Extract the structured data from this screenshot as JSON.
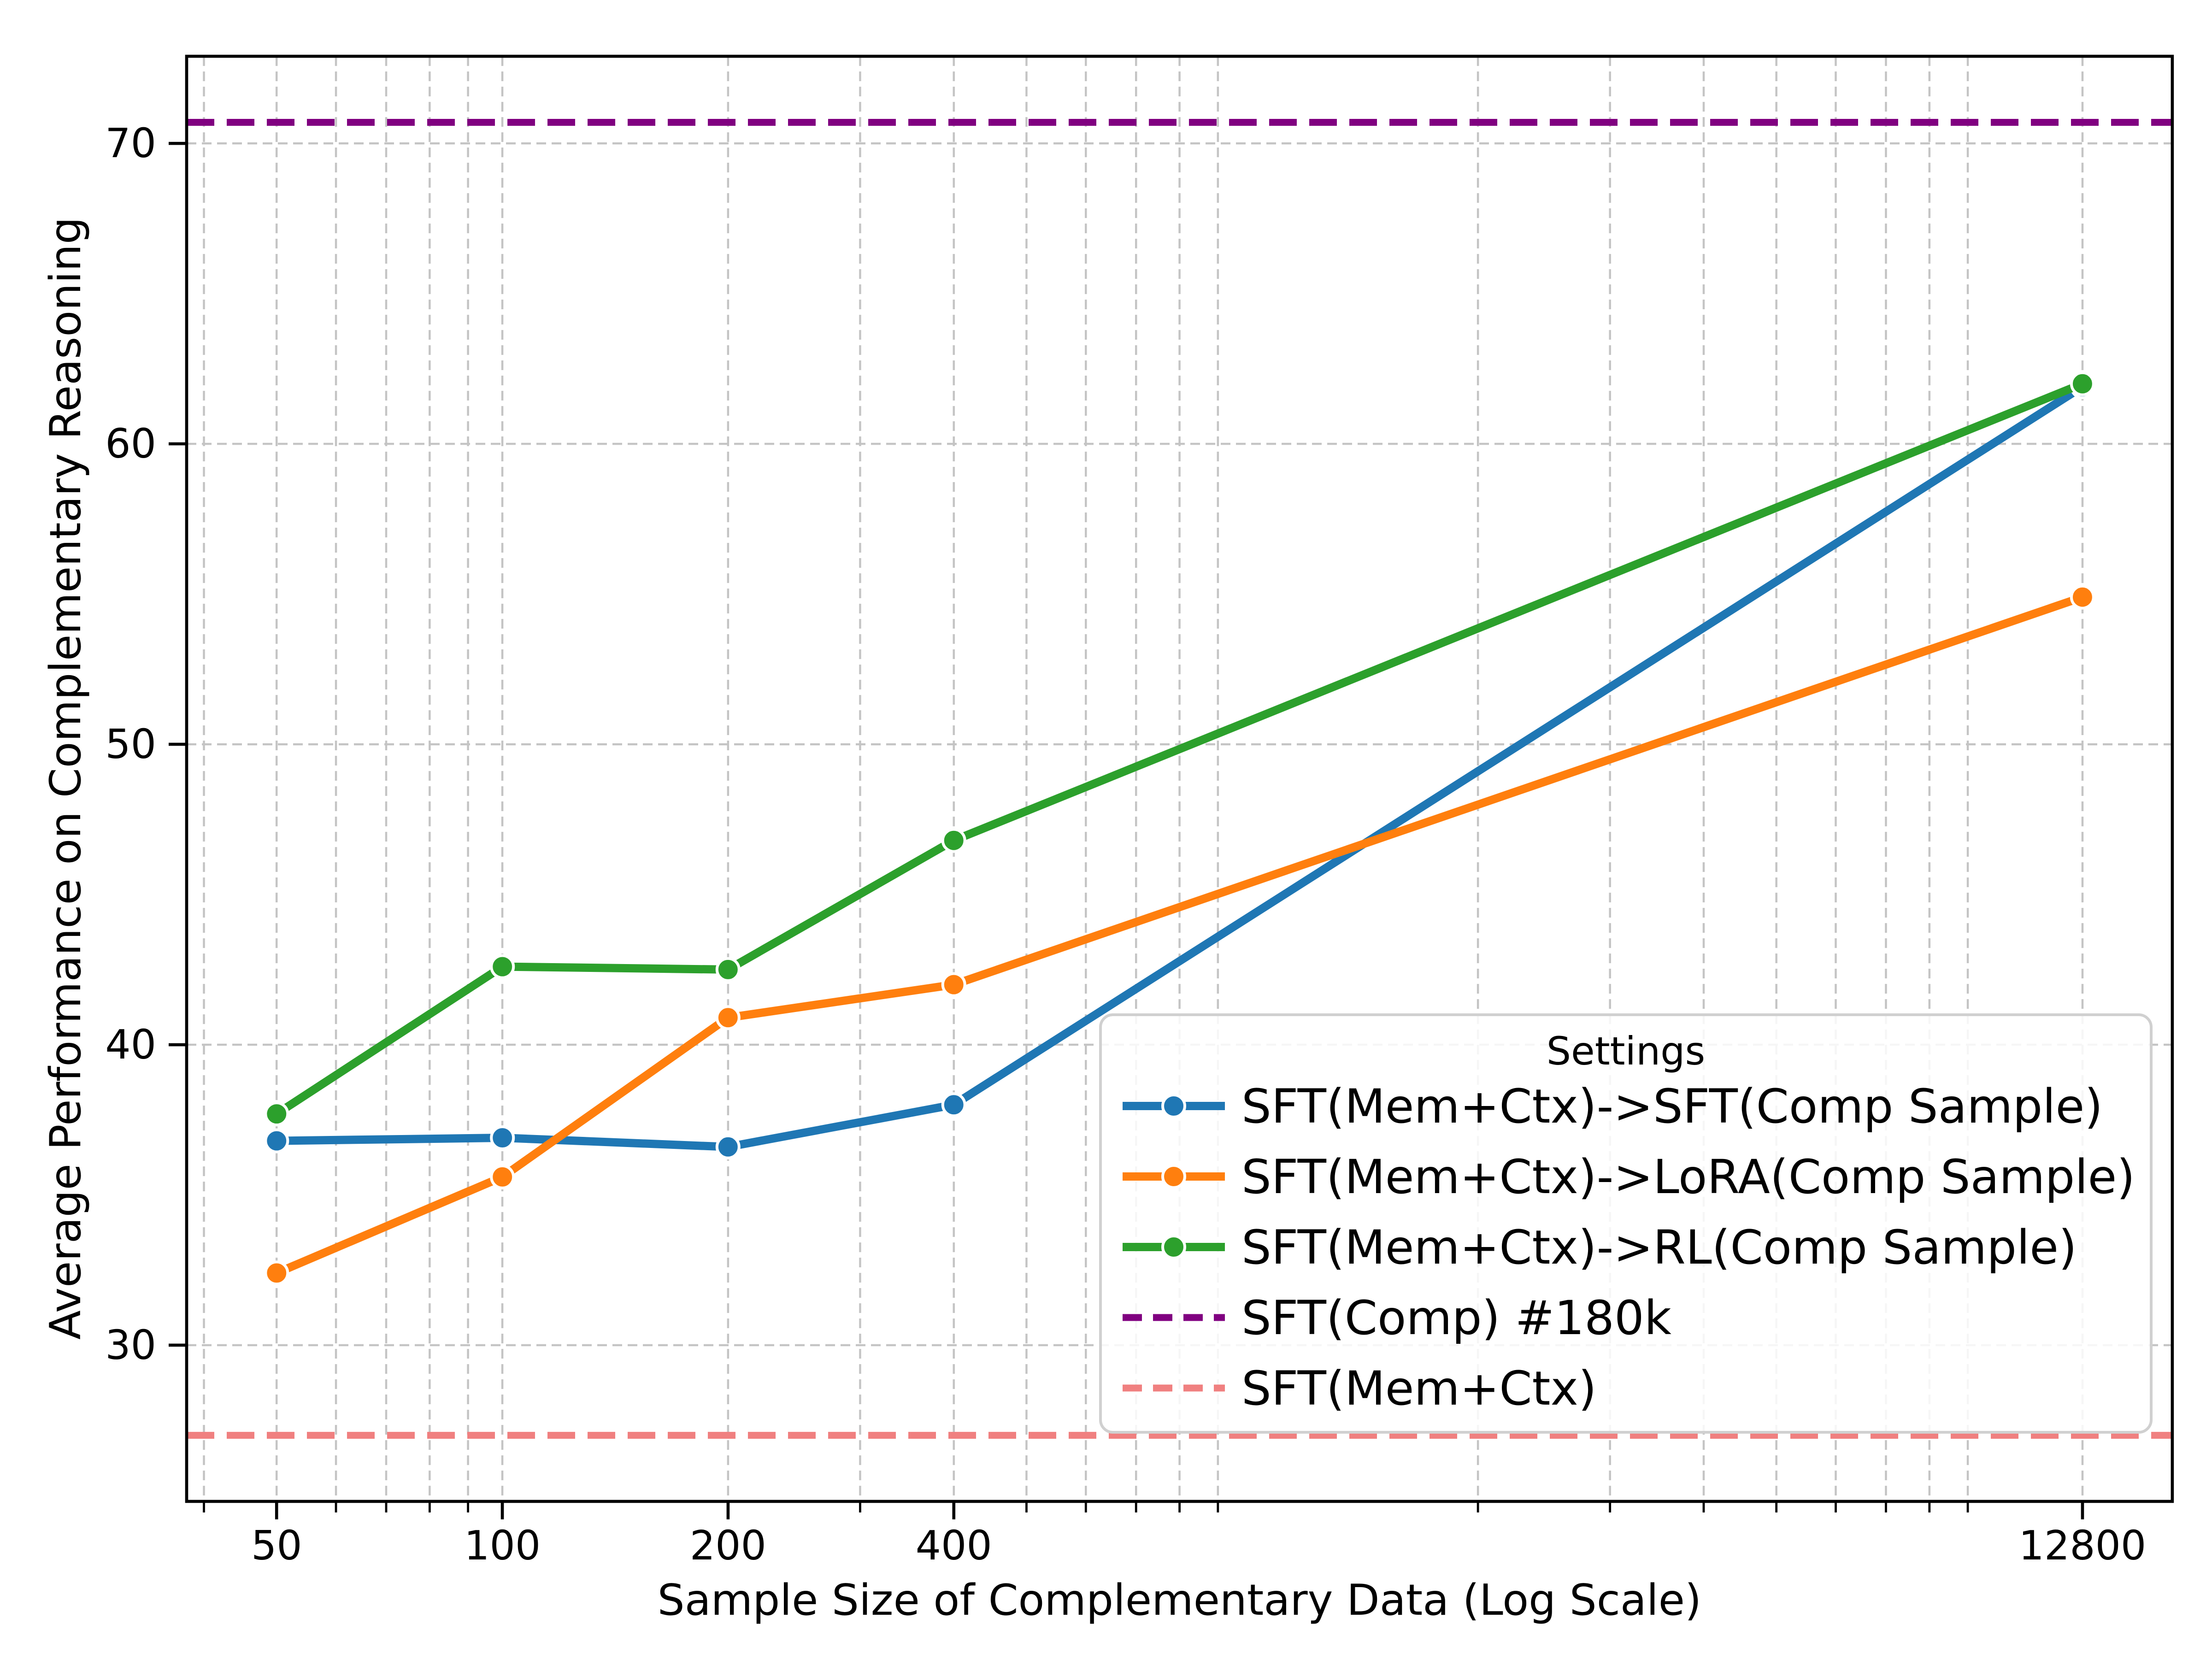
{
  "figure": {
    "background": "#ffffff"
  },
  "chart_data": {
    "type": "line",
    "xlabel": "Sample Size of Complementary Data (Log Scale)",
    "ylabel": "Average Performance on Complementary Reasoning",
    "xscale": "log",
    "x": [
      50,
      100,
      200,
      400,
      12800
    ],
    "xtick_labels": [
      "50",
      "100",
      "200",
      "400",
      "12800"
    ],
    "yticks": [
      30,
      40,
      50,
      60,
      70
    ],
    "ytick_labels": [
      "30",
      "40",
      "50",
      "60",
      "70"
    ],
    "xlim_log10": [
      1.579,
      4.227
    ],
    "ylim": [
      24.8,
      72.9
    ],
    "grid": true,
    "minor_gridlines_x": [
      40,
      60,
      70,
      80,
      90,
      300,
      500,
      600,
      700,
      800,
      900,
      2000,
      3000,
      4000,
      5000,
      6000,
      7000,
      8000,
      9000
    ],
    "series": [
      {
        "name": "SFT(Mem+Ctx)->SFT(Comp Sample)",
        "color": "#1f77b4",
        "marker": "circle",
        "values": [
          36.8,
          36.9,
          36.6,
          38.0,
          61.9
        ]
      },
      {
        "name": "SFT(Mem+Ctx)->LoRA(Comp Sample)",
        "color": "#ff7f0e",
        "marker": "circle",
        "values": [
          32.4,
          35.6,
          40.9,
          42.0,
          54.9
        ]
      },
      {
        "name": "SFT(Mem+Ctx)->RL(Comp Sample)",
        "color": "#2ca02c",
        "marker": "circle",
        "values": [
          37.7,
          42.6,
          42.5,
          46.8,
          62.0
        ]
      }
    ],
    "hlines": [
      {
        "name": "SFT(Comp) #180k",
        "color": "#800080",
        "value": 70.7
      },
      {
        "name": "SFT(Mem+Ctx)",
        "color": "#f08080",
        "value": 27.0
      }
    ],
    "legend": {
      "title": "Settings",
      "position": "lower right"
    },
    "colors": {
      "grid": "#c4c4c4",
      "spine": "#000000",
      "text": "#000000",
      "legend_border": "#d0d0d0",
      "legend_fill": "#ffffff"
    }
  }
}
